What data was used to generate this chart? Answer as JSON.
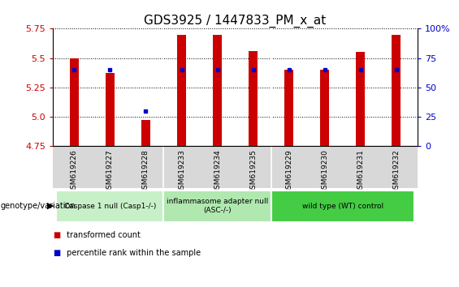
{
  "title": "GDS3925 / 1447833_PM_x_at",
  "samples": [
    "GSM619226",
    "GSM619227",
    "GSM619228",
    "GSM619233",
    "GSM619234",
    "GSM619235",
    "GSM619229",
    "GSM619230",
    "GSM619231",
    "GSM619232"
  ],
  "transformed_count": [
    5.5,
    5.37,
    4.97,
    5.7,
    5.7,
    5.56,
    5.4,
    5.4,
    5.55,
    5.7
  ],
  "percentile_rank_values": [
    65,
    65,
    30,
    65,
    65,
    65,
    65,
    65,
    65,
    65
  ],
  "bar_bottom": 4.75,
  "ylim": [
    4.75,
    5.75
  ],
  "yticks": [
    4.75,
    5.0,
    5.25,
    5.5,
    5.75
  ],
  "right_yticks": [
    0,
    25,
    50,
    75,
    100
  ],
  "right_ylim": [
    0,
    100
  ],
  "groups": [
    {
      "label": "Caspase 1 null (Casp1-/-)",
      "start": 0,
      "end": 3,
      "color": "#c8f0c8"
    },
    {
      "label": "inflammasome adapter null\n(ASC-/-)",
      "start": 3,
      "end": 6,
      "color": "#b0e8b0"
    },
    {
      "label": "wild type (WT) control",
      "start": 6,
      "end": 10,
      "color": "#44cc44"
    }
  ],
  "bar_color": "#cc0000",
  "blue_color": "#0000cc",
  "tick_label_color": "#cc0000",
  "right_tick_color": "#0000cc",
  "background_color": "#ffffff",
  "plot_bg_color": "#ffffff",
  "xtick_bg_color": "#d8d8d8",
  "title_fontsize": 11,
  "tick_fontsize": 8,
  "bar_width": 0.25
}
